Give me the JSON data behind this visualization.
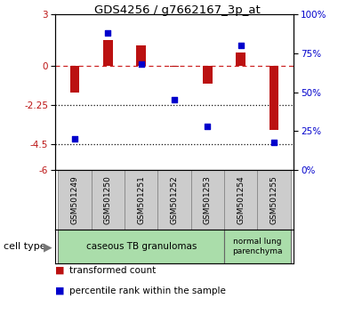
{
  "title": "GDS4256 / g7662167_3p_at",
  "samples": [
    "GSM501249",
    "GSM501250",
    "GSM501251",
    "GSM501252",
    "GSM501253",
    "GSM501254",
    "GSM501255"
  ],
  "transformed_count": [
    -1.5,
    1.5,
    1.2,
    -0.05,
    -1.0,
    0.8,
    -3.7
  ],
  "percentile_rank": [
    20,
    88,
    68,
    45,
    28,
    80,
    18
  ],
  "ylim_left": [
    -6,
    3
  ],
  "ylim_right": [
    0,
    100
  ],
  "yticks_left": [
    3,
    0,
    -2.25,
    -4.5,
    -6
  ],
  "yticks_right": [
    100,
    75,
    50,
    25,
    0
  ],
  "bar_color": "#bb1111",
  "scatter_color": "#0000cc",
  "dashed_line_color": "#cc2222",
  "dotted_line_color": "#111111",
  "group1_label": "caseous TB granulomas",
  "group2_label": "normal lung\nparenchyma",
  "cell_type_label": "cell type",
  "legend1": "transformed count",
  "legend2": "percentile rank within the sample",
  "bar_width": 0.28,
  "scatter_size": 20
}
